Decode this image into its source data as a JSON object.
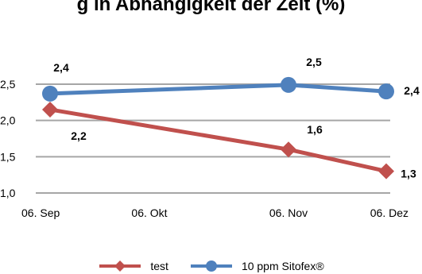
{
  "chart_data": {
    "type": "line",
    "title": "g in Abhängigkeit der Zeit (%)",
    "categories": [
      "06. Sep",
      "06. Okt",
      "06. Nov",
      "06. Dez"
    ],
    "x": [
      "06. Sep",
      "06. Nov",
      "06. Dez"
    ],
    "series": [
      {
        "name": "test",
        "values": [
          2.15,
          1.6,
          1.3
        ],
        "labels": [
          "2,2",
          "1,6",
          "1,3"
        ],
        "color": "#c0504d",
        "marker": "diamond"
      },
      {
        "name": "10 ppm Sitofex®",
        "values": [
          2.37,
          2.49,
          2.4
        ],
        "labels": [
          "2,4",
          "2,5",
          "2,4"
        ],
        "color": "#4f81bd",
        "marker": "circle"
      }
    ],
    "y_ticks": [
      "1,0",
      "1,5",
      "2,0",
      "2,5"
    ],
    "ylim": [
      1.0,
      2.5
    ],
    "grid": true,
    "legend_position": "bottom"
  }
}
